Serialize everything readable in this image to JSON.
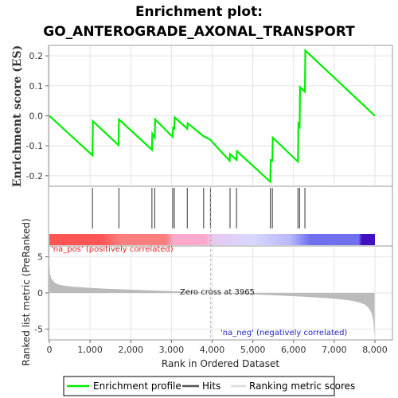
{
  "title_line1": "Enrichment plot:",
  "title_line2": "GO_ANTEROGRADE_AXONAL_TRANSPORT",
  "colors": {
    "enrichment": "#00ee00",
    "hits": "#555555",
    "metric_fill": "#bbbbbb",
    "pos_text": "#dd2222",
    "neg_text": "#2222bb",
    "gradient": [
      "#ff5555",
      "#ff7f7f",
      "#ffaacc",
      "#e8c8f0",
      "#d8d8ff",
      "#b8b8ff",
      "#7070ee",
      "#4010c0"
    ]
  },
  "chart_data": [
    {
      "type": "line",
      "name": "enrichment-profile",
      "ylabel": "Enrichment score (ES)",
      "xlim": [
        0,
        8000
      ],
      "ylim": [
        -0.235,
        0.235
      ],
      "yticks": [
        -0.2,
        -0.1,
        0.0,
        0.1,
        0.2
      ],
      "ytick_labels": [
        "-0.2",
        "-0.1",
        "0.0",
        "0.1",
        "0.2"
      ],
      "grid": true,
      "x": [
        0,
        1060,
        1070,
        1700,
        1710,
        2520,
        2530,
        2590,
        2600,
        3030,
        3040,
        3070,
        3080,
        3390,
        3400,
        3780,
        3790,
        3960,
        3970,
        4430,
        4440,
        4600,
        4610,
        5430,
        5440,
        5480,
        5490,
        6110,
        6120,
        6150,
        6160,
        6280,
        6290,
        8000
      ],
      "y": [
        0.0,
        -0.132,
        -0.018,
        -0.098,
        -0.012,
        -0.113,
        -0.06,
        -0.073,
        -0.012,
        -0.07,
        -0.04,
        -0.042,
        -0.005,
        -0.043,
        -0.025,
        -0.067,
        -0.068,
        -0.08,
        -0.082,
        -0.15,
        -0.128,
        -0.147,
        -0.118,
        -0.22,
        -0.148,
        -0.15,
        -0.073,
        -0.153,
        -0.028,
        -0.035,
        0.096,
        0.08,
        0.218,
        0.0
      ]
    },
    {
      "type": "hits",
      "name": "hits",
      "positions": [
        1060,
        1710,
        2520,
        2590,
        3030,
        3070,
        3390,
        3790,
        3960,
        4440,
        4600,
        5430,
        5480,
        6110,
        6150,
        6280
      ]
    },
    {
      "type": "area",
      "name": "ranking-metric",
      "xlabel": "Rank in Ordered Dataset",
      "ylabel": "Ranked list metric (PreRanked)",
      "xlim": [
        0,
        8000
      ],
      "ylim": [
        -6.5,
        6.5
      ],
      "yticks": [
        -5,
        0,
        5
      ],
      "ytick_labels": [
        "-5",
        "0",
        "5"
      ],
      "xticks": [
        0,
        1000,
        2000,
        3000,
        4000,
        5000,
        6000,
        7000,
        8000
      ],
      "xtick_labels": [
        "0",
        "1,000",
        "2,000",
        "3,000",
        "4,000",
        "5,000",
        "6,000",
        "7,000",
        "8,000"
      ],
      "x": [
        0,
        20,
        60,
        120,
        200,
        350,
        600,
        1000,
        1500,
        2000,
        2500,
        3000,
        3500,
        3965,
        4500,
        5000,
        5500,
        6000,
        6500,
        7000,
        7400,
        7600,
        7750,
        7850,
        7920,
        7960,
        7990
      ],
      "values": [
        4.0,
        2.5,
        1.9,
        1.5,
        1.2,
        1.0,
        0.85,
        0.7,
        0.55,
        0.45,
        0.35,
        0.25,
        0.12,
        0.0,
        -0.1,
        -0.2,
        -0.32,
        -0.45,
        -0.6,
        -0.8,
        -1.05,
        -1.3,
        -1.6,
        -2.1,
        -2.8,
        -3.8,
        -6.0
      ],
      "zero_cross": 3965,
      "zero_cross_label": "Zero cross at 3965",
      "pos_label": "'na_pos' (positively correlated)",
      "neg_label": "'na_neg' (negatively correlated)"
    }
  ],
  "legend": {
    "items": [
      {
        "label": "Enrichment profile"
      },
      {
        "label": "Hits"
      },
      {
        "label": "Ranking metric scores"
      }
    ]
  }
}
